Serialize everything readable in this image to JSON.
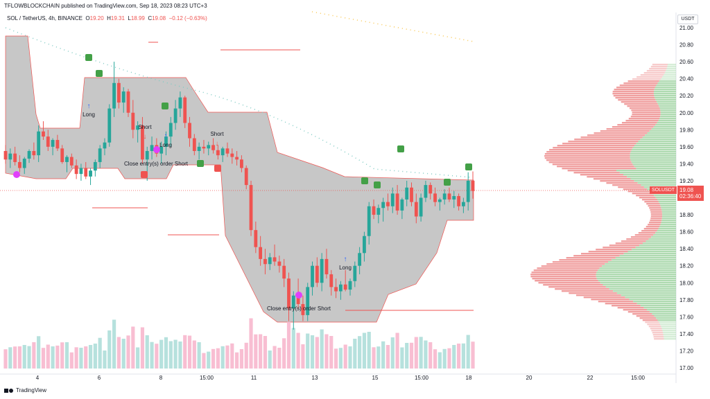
{
  "header": {
    "publisher": "TFLOWBLOCKCHAIN published on TradingView.com, Sep 18, 2023 08:23 UTC+3",
    "symbol": "SOL / TetherUS, 4h, BINANCE",
    "open_label": "O",
    "open": "19.20",
    "high_label": "H",
    "high": "19.31",
    "low_label": "L",
    "low": "18.99",
    "close_label": "C",
    "close": "19.08",
    "change": "−0.12 (−0.63%)"
  },
  "price_axis": {
    "currency": "USDT",
    "ticks": [
      "21.00",
      "20.80",
      "20.60",
      "20.40",
      "20.20",
      "20.00",
      "19.80",
      "19.60",
      "19.40",
      "19.20",
      "19.00",
      "18.80",
      "18.60",
      "18.40",
      "18.20",
      "18.00",
      "17.80",
      "17.60",
      "17.40",
      "17.20",
      "17.00"
    ],
    "current_price": "19.08",
    "countdown": "02:36:40",
    "symbol_tag": "SOLUSDT"
  },
  "time_axis": {
    "ticks": [
      "4",
      "6",
      "8",
      "15:00",
      "11",
      "13",
      "15",
      "15:00",
      "18",
      "20",
      "22",
      "15:00"
    ]
  },
  "signals": {
    "long": "Long",
    "short": "Short",
    "close_order": "Close entry(s) order Short"
  },
  "logo_text": "TradingView",
  "colors": {
    "up": "#26a69a",
    "down": "#ef5350",
    "band": "#bdbdbd",
    "vp_up": "#a5d6a7",
    "vp_down": "#ef9a9a",
    "trail": "#80cbc4"
  },
  "chart_data": {
    "type": "candlestick",
    "timeframe": "4h",
    "ylim": [
      17.0,
      21.1
    ],
    "candles": [
      [
        19.55,
        19.62,
        19.4,
        19.45
      ],
      [
        19.45,
        19.58,
        19.35,
        19.52
      ],
      [
        19.52,
        19.6,
        19.38,
        19.42
      ],
      [
        19.42,
        19.5,
        19.3,
        19.35
      ],
      [
        19.35,
        19.48,
        19.28,
        19.46
      ],
      [
        19.46,
        19.57,
        19.41,
        19.55
      ],
      [
        19.55,
        19.65,
        19.45,
        19.5
      ],
      [
        19.5,
        19.85,
        19.42,
        19.78
      ],
      [
        19.78,
        19.9,
        19.68,
        19.72
      ],
      [
        19.72,
        19.8,
        19.55,
        19.6
      ],
      [
        19.6,
        19.7,
        19.5,
        19.68
      ],
      [
        19.68,
        19.74,
        19.55,
        19.58
      ],
      [
        19.58,
        19.62,
        19.4,
        19.42
      ],
      [
        19.42,
        19.5,
        19.3,
        19.48
      ],
      [
        19.48,
        19.52,
        19.35,
        19.38
      ],
      [
        19.38,
        19.45,
        19.22,
        19.28
      ],
      [
        19.28,
        19.4,
        19.2,
        19.35
      ],
      [
        19.35,
        19.42,
        19.22,
        19.25
      ],
      [
        19.25,
        19.35,
        19.15,
        19.32
      ],
      [
        19.32,
        19.45,
        19.25,
        19.42
      ],
      [
        19.42,
        19.62,
        19.35,
        19.58
      ],
      [
        19.58,
        19.7,
        19.5,
        19.65
      ],
      [
        19.65,
        20.1,
        19.6,
        20.05
      ],
      [
        20.05,
        20.6,
        19.95,
        20.35
      ],
      [
        20.35,
        20.4,
        20.05,
        20.12
      ],
      [
        20.12,
        20.3,
        20.0,
        20.25
      ],
      [
        20.25,
        20.28,
        19.95,
        20.0
      ],
      [
        20.0,
        20.15,
        19.7,
        19.8
      ],
      [
        19.8,
        19.9,
        19.65,
        19.85
      ],
      [
        19.85,
        19.95,
        19.4,
        19.45
      ],
      [
        19.45,
        19.6,
        19.2,
        19.55
      ],
      [
        19.55,
        19.72,
        19.45,
        19.62
      ],
      [
        19.62,
        19.7,
        19.48,
        19.52
      ],
      [
        19.52,
        19.66,
        19.4,
        19.6
      ],
      [
        19.6,
        19.78,
        19.5,
        19.72
      ],
      [
        19.72,
        19.95,
        19.6,
        19.88
      ],
      [
        19.88,
        20.15,
        19.8,
        20.05
      ],
      [
        20.05,
        20.25,
        19.95,
        20.18
      ],
      [
        20.18,
        20.2,
        19.82,
        19.88
      ],
      [
        19.88,
        19.95,
        19.6,
        19.7
      ],
      [
        19.7,
        19.75,
        19.5,
        19.55
      ],
      [
        19.55,
        19.65,
        19.45,
        19.6
      ],
      [
        19.6,
        19.68,
        19.52,
        19.58
      ],
      [
        19.58,
        19.66,
        19.5,
        19.62
      ],
      [
        19.62,
        19.7,
        19.52,
        19.56
      ],
      [
        19.56,
        19.62,
        19.45,
        19.5
      ],
      [
        19.5,
        19.6,
        19.42,
        19.58
      ],
      [
        19.58,
        19.65,
        19.48,
        19.52
      ],
      [
        19.52,
        19.58,
        19.4,
        19.48
      ],
      [
        19.48,
        19.55,
        19.38,
        19.45
      ],
      [
        19.45,
        19.5,
        19.3,
        19.35
      ],
      [
        19.35,
        19.38,
        19.1,
        19.15
      ],
      [
        19.15,
        19.2,
        18.55,
        18.62
      ],
      [
        18.62,
        18.72,
        18.35,
        18.42
      ],
      [
        18.42,
        18.55,
        18.2,
        18.28
      ],
      [
        18.28,
        18.4,
        18.1,
        18.22
      ],
      [
        18.22,
        18.35,
        18.15,
        18.3
      ],
      [
        18.3,
        18.45,
        18.2,
        18.25
      ],
      [
        18.25,
        18.32,
        18.12,
        18.2
      ],
      [
        18.2,
        18.28,
        17.95,
        18.05
      ],
      [
        18.05,
        18.12,
        17.55,
        17.7
      ],
      [
        17.7,
        17.9,
        17.45,
        17.85
      ],
      [
        17.85,
        18.05,
        17.7,
        17.75
      ],
      [
        17.75,
        17.85,
        17.55,
        17.62
      ],
      [
        17.62,
        18.0,
        17.55,
        17.95
      ],
      [
        17.95,
        18.25,
        17.85,
        18.2
      ],
      [
        18.2,
        18.3,
        17.95,
        18.0
      ],
      [
        18.0,
        18.35,
        17.9,
        18.28
      ],
      [
        18.28,
        18.4,
        18.05,
        18.1
      ],
      [
        18.1,
        18.15,
        17.85,
        17.95
      ],
      [
        17.95,
        18.05,
        17.82,
        17.9
      ],
      [
        17.9,
        18.02,
        17.8,
        17.98
      ],
      [
        17.98,
        18.15,
        17.9,
        17.92
      ],
      [
        17.92,
        18.05,
        17.85,
        18.02
      ],
      [
        18.02,
        18.25,
        17.95,
        18.2
      ],
      [
        18.2,
        18.42,
        18.1,
        18.35
      ],
      [
        18.35,
        18.6,
        18.25,
        18.55
      ],
      [
        18.55,
        18.95,
        18.45,
        18.9
      ],
      [
        18.9,
        18.98,
        18.75,
        18.8
      ],
      [
        18.8,
        18.92,
        18.7,
        18.88
      ],
      [
        18.88,
        19.0,
        18.72,
        18.95
      ],
      [
        18.95,
        19.05,
        18.85,
        18.9
      ],
      [
        18.9,
        19.12,
        18.82,
        19.05
      ],
      [
        19.05,
        19.15,
        18.8,
        18.85
      ],
      [
        18.85,
        19.0,
        18.75,
        18.98
      ],
      [
        18.98,
        19.2,
        18.9,
        19.12
      ],
      [
        19.12,
        19.18,
        18.9,
        18.95
      ],
      [
        18.95,
        19.05,
        18.7,
        18.78
      ],
      [
        18.78,
        19.05,
        18.72,
        19.0
      ],
      [
        19.0,
        19.2,
        18.95,
        19.15
      ],
      [
        19.15,
        19.18,
        18.98,
        19.05
      ],
      [
        19.05,
        19.12,
        18.9,
        18.95
      ],
      [
        18.95,
        19.0,
        18.85,
        18.98
      ],
      [
        18.98,
        19.1,
        18.92,
        19.05
      ],
      [
        19.05,
        19.12,
        18.95,
        18.98
      ],
      [
        18.98,
        19.08,
        18.88,
        19.02
      ],
      [
        19.02,
        19.05,
        18.85,
        18.9
      ],
      [
        18.9,
        19.0,
        18.82,
        18.95
      ],
      [
        18.95,
        19.3,
        18.85,
        19.2
      ],
      [
        19.2,
        19.31,
        18.99,
        19.08
      ]
    ],
    "volume_profile_note": "visible range volume profile on the right side"
  }
}
